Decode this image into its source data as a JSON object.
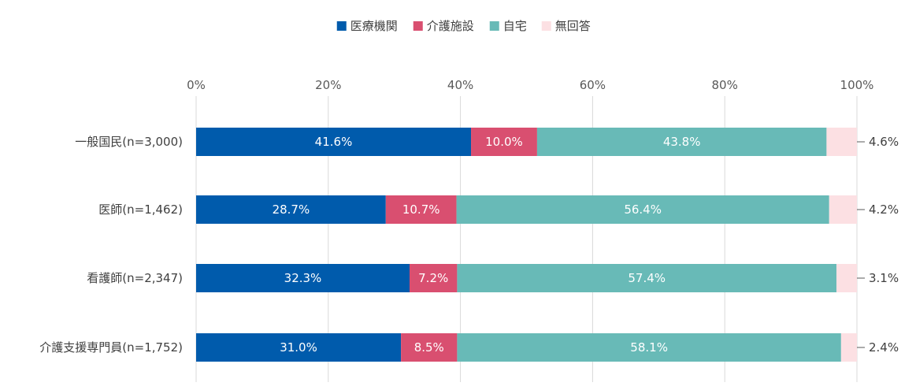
{
  "chart_data": {
    "type": "bar",
    "orientation": "horizontal",
    "stacked": "percent",
    "legend_position": "top",
    "grid": true,
    "xlim": [
      0,
      100
    ],
    "x_ticks": [
      "0%",
      "20%",
      "40%",
      "60%",
      "80%",
      "100%"
    ],
    "categories": [
      "一般国民(n=3,000)",
      "医師(n=1,462)",
      "看護師(n=2,347)",
      "介護支援専門員(n=1,752)"
    ],
    "series": [
      {
        "name": "医療機関",
        "color": "#005BAC",
        "values": [
          41.6,
          28.7,
          32.3,
          31.0
        ],
        "labels": [
          "41.6%",
          "28.7%",
          "32.3%",
          "31.0%"
        ]
      },
      {
        "name": "介護施設",
        "color": "#D94F70",
        "values": [
          10.0,
          10.7,
          7.2,
          8.5
        ],
        "labels": [
          "10.0%",
          "10.7%",
          "7.2%",
          "8.5%"
        ]
      },
      {
        "name": "自宅",
        "color": "#68BAB7",
        "values": [
          43.8,
          56.4,
          57.4,
          58.1
        ],
        "labels": [
          "43.8%",
          "56.4%",
          "57.4%",
          "58.1%"
        ]
      },
      {
        "name": "無回答",
        "color": "#FCE0E3",
        "values": [
          4.6,
          4.2,
          3.1,
          2.4
        ],
        "labels": [
          "4.6%",
          "4.2%",
          "3.1%",
          "2.4%"
        ]
      }
    ]
  }
}
